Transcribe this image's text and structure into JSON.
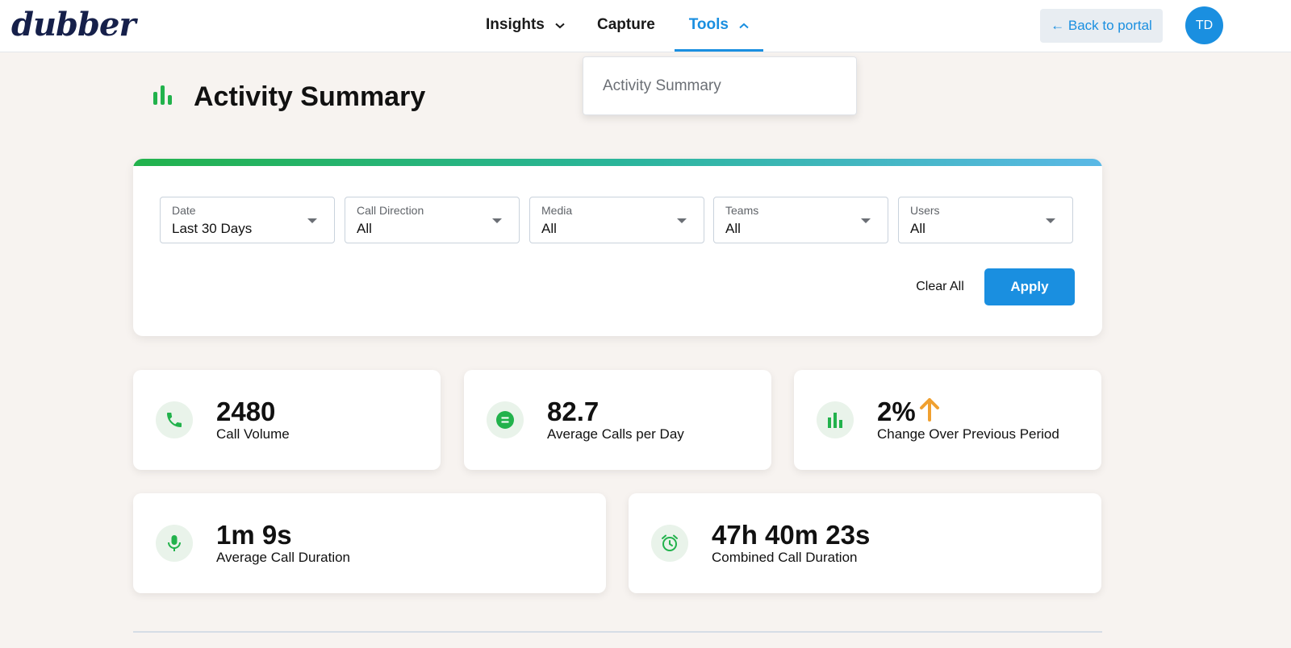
{
  "brand": {
    "logo_text": "dubber"
  },
  "nav": {
    "items": [
      {
        "label": "Insights"
      },
      {
        "label": "Capture"
      },
      {
        "label": "Tools"
      }
    ],
    "back_label": "← Back to portal",
    "avatar_initials": "TD",
    "tools_menu": [
      "Activity Summary"
    ]
  },
  "page": {
    "title": "Activity Summary"
  },
  "filters": [
    {
      "label": "Date",
      "value": "Last 30 Days"
    },
    {
      "label": "Call Direction",
      "value": "All"
    },
    {
      "label": "Media",
      "value": "All"
    },
    {
      "label": "Teams",
      "value": "All"
    },
    {
      "label": "Users",
      "value": "All"
    }
  ],
  "actions": {
    "clear_label": "Clear All",
    "apply_label": "Apply"
  },
  "stats": [
    {
      "value": "2480",
      "label": "Call Volume",
      "icon": "phone-icon"
    },
    {
      "value": "82.7",
      "label": "Average Calls per Day",
      "icon": "equals-icon"
    },
    {
      "value": "2%",
      "label": "Change Over Previous Period",
      "icon": "bar-chart-icon",
      "trend": "up"
    },
    {
      "value": "1m 9s",
      "label": "Average Call Duration",
      "icon": "microphone-icon"
    },
    {
      "value": "47h 40m 23s",
      "label": "Combined Call Duration",
      "icon": "alarm-clock-icon"
    }
  ],
  "colors": {
    "primary": "#1a8fe0",
    "green": "#22b24c",
    "trend_up": "#f0a030",
    "background": "#f7f3f0"
  }
}
